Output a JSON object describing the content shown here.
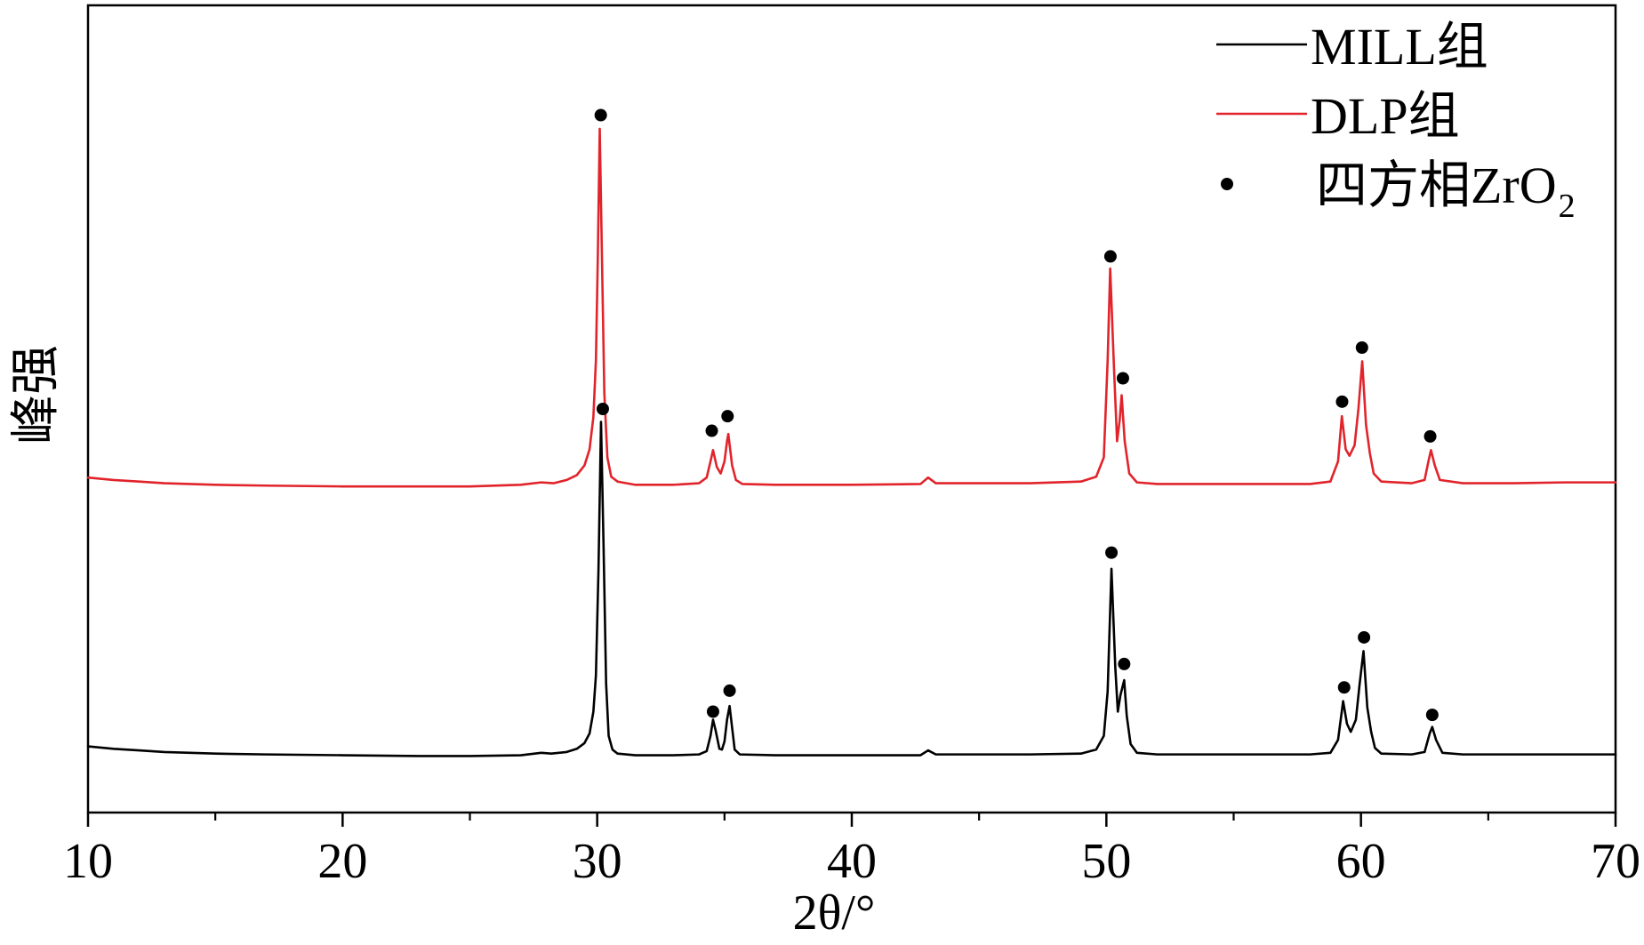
{
  "chart_data": {
    "type": "line",
    "xlabel": "2θ/°",
    "ylabel": "峰强",
    "xlim": [
      10,
      70
    ],
    "ylim": [
      0,
      100
    ],
    "x_ticks": [
      10,
      20,
      30,
      40,
      50,
      60,
      70
    ],
    "x_minor_ticks": [
      15,
      25,
      35,
      45,
      55,
      65
    ],
    "grid": false,
    "legend_position": "top-right",
    "series": [
      {
        "name": "MILL组",
        "color": "#000000",
        "points": [
          [
            10,
            8.2
          ],
          [
            11,
            7.9
          ],
          [
            12,
            7.7
          ],
          [
            13,
            7.5
          ],
          [
            14,
            7.4
          ],
          [
            15,
            7.3
          ],
          [
            17,
            7.2
          ],
          [
            20,
            7.1
          ],
          [
            23,
            7.0
          ],
          [
            25,
            7.0
          ],
          [
            27,
            7.1
          ],
          [
            27.8,
            7.4
          ],
          [
            28.2,
            7.3
          ],
          [
            28.8,
            7.5
          ],
          [
            29.2,
            7.9
          ],
          [
            29.5,
            8.6
          ],
          [
            29.7,
            9.8
          ],
          [
            29.85,
            12.5
          ],
          [
            29.95,
            17.0
          ],
          [
            30.05,
            30.0
          ],
          [
            30.15,
            48.4
          ],
          [
            30.25,
            33.0
          ],
          [
            30.35,
            16.0
          ],
          [
            30.45,
            9.5
          ],
          [
            30.6,
            7.8
          ],
          [
            30.8,
            7.3
          ],
          [
            31.5,
            7.1
          ],
          [
            33,
            7.1
          ],
          [
            34,
            7.2
          ],
          [
            34.3,
            7.6
          ],
          [
            34.45,
            9.5
          ],
          [
            34.55,
            11.5
          ],
          [
            34.65,
            10.2
          ],
          [
            34.8,
            7.9
          ],
          [
            34.9,
            7.8
          ],
          [
            35.0,
            8.8
          ],
          [
            35.1,
            11.5
          ],
          [
            35.2,
            13.2
          ],
          [
            35.3,
            10.5
          ],
          [
            35.4,
            7.8
          ],
          [
            35.6,
            7.2
          ],
          [
            37,
            7.1
          ],
          [
            40,
            7.1
          ],
          [
            42.7,
            7.1
          ],
          [
            43.0,
            7.7
          ],
          [
            43.3,
            7.2
          ],
          [
            45,
            7.2
          ],
          [
            47,
            7.2
          ],
          [
            49,
            7.3
          ],
          [
            49.6,
            7.8
          ],
          [
            49.9,
            9.5
          ],
          [
            50.05,
            15.0
          ],
          [
            50.2,
            30.2
          ],
          [
            50.35,
            18.0
          ],
          [
            50.45,
            12.5
          ],
          [
            50.55,
            14.5
          ],
          [
            50.7,
            16.4
          ],
          [
            50.8,
            12.0
          ],
          [
            50.95,
            8.5
          ],
          [
            51.2,
            7.4
          ],
          [
            52,
            7.2
          ],
          [
            55,
            7.2
          ],
          [
            58,
            7.2
          ],
          [
            58.8,
            7.4
          ],
          [
            59.1,
            9.0
          ],
          [
            59.3,
            13.8
          ],
          [
            59.45,
            11.0
          ],
          [
            59.6,
            10.0
          ],
          [
            59.8,
            11.5
          ],
          [
            59.95,
            16.0
          ],
          [
            60.1,
            20.0
          ],
          [
            60.25,
            13.0
          ],
          [
            60.4,
            10.0
          ],
          [
            60.55,
            8.0
          ],
          [
            60.8,
            7.3
          ],
          [
            62,
            7.2
          ],
          [
            62.5,
            7.5
          ],
          [
            62.7,
            9.8
          ],
          [
            62.8,
            10.6
          ],
          [
            62.95,
            9.0
          ],
          [
            63.2,
            7.4
          ],
          [
            64,
            7.2
          ],
          [
            66,
            7.2
          ],
          [
            68,
            7.2
          ],
          [
            70,
            7.2
          ]
        ]
      },
      {
        "name": "DLP组",
        "color": "#e1242b",
        "points": [
          [
            10,
            41.5
          ],
          [
            11,
            41.2
          ],
          [
            12,
            41.0
          ],
          [
            13,
            40.8
          ],
          [
            15,
            40.6
          ],
          [
            17,
            40.5
          ],
          [
            20,
            40.4
          ],
          [
            23,
            40.4
          ],
          [
            25,
            40.4
          ],
          [
            27,
            40.6
          ],
          [
            27.8,
            40.9
          ],
          [
            28.3,
            40.8
          ],
          [
            28.8,
            41.2
          ],
          [
            29.2,
            41.8
          ],
          [
            29.5,
            43.0
          ],
          [
            29.7,
            45.0
          ],
          [
            29.85,
            49.0
          ],
          [
            29.95,
            56.0
          ],
          [
            30.02,
            68.0
          ],
          [
            30.1,
            84.7
          ],
          [
            30.18,
            70.0
          ],
          [
            30.28,
            52.0
          ],
          [
            30.4,
            44.0
          ],
          [
            30.55,
            41.6
          ],
          [
            30.8,
            41.0
          ],
          [
            31.5,
            40.6
          ],
          [
            33,
            40.6
          ],
          [
            34,
            40.8
          ],
          [
            34.3,
            41.5
          ],
          [
            34.45,
            43.5
          ],
          [
            34.55,
            44.9
          ],
          [
            34.7,
            42.8
          ],
          [
            34.85,
            42.0
          ],
          [
            35.0,
            43.5
          ],
          [
            35.1,
            46.0
          ],
          [
            35.15,
            46.9
          ],
          [
            35.3,
            43.0
          ],
          [
            35.45,
            41.2
          ],
          [
            35.7,
            40.7
          ],
          [
            37,
            40.6
          ],
          [
            40,
            40.6
          ],
          [
            42.7,
            40.7
          ],
          [
            43.0,
            41.5
          ],
          [
            43.3,
            40.8
          ],
          [
            45,
            40.8
          ],
          [
            47,
            40.8
          ],
          [
            49,
            41.0
          ],
          [
            49.6,
            41.6
          ],
          [
            49.9,
            44.0
          ],
          [
            50.05,
            56.0
          ],
          [
            50.15,
            67.4
          ],
          [
            50.3,
            55.0
          ],
          [
            50.42,
            46.0
          ],
          [
            50.52,
            48.5
          ],
          [
            50.6,
            51.7
          ],
          [
            50.72,
            46.0
          ],
          [
            50.9,
            42.0
          ],
          [
            51.2,
            40.9
          ],
          [
            52,
            40.7
          ],
          [
            55,
            40.7
          ],
          [
            58,
            40.7
          ],
          [
            58.8,
            41.0
          ],
          [
            59.1,
            43.5
          ],
          [
            59.25,
            49.1
          ],
          [
            59.4,
            45.0
          ],
          [
            59.55,
            44.2
          ],
          [
            59.75,
            45.5
          ],
          [
            59.9,
            50.0
          ],
          [
            60.05,
            55.9
          ],
          [
            60.2,
            48.0
          ],
          [
            60.35,
            44.5
          ],
          [
            60.5,
            42.0
          ],
          [
            60.8,
            41.0
          ],
          [
            62,
            40.8
          ],
          [
            62.5,
            41.2
          ],
          [
            62.65,
            43.5
          ],
          [
            62.75,
            44.9
          ],
          [
            62.9,
            43.0
          ],
          [
            63.1,
            41.2
          ],
          [
            64,
            40.8
          ],
          [
            66,
            40.8
          ],
          [
            68,
            40.9
          ],
          [
            70,
            40.9
          ]
        ]
      }
    ],
    "markers": {
      "label": "四方相ZrO",
      "label_sub": "2",
      "color": "#000000",
      "points": [
        [
          30.14,
          86.4
        ],
        [
          34.5,
          47.3
        ],
        [
          35.12,
          49.1
        ],
        [
          50.16,
          68.9
        ],
        [
          50.65,
          53.8
        ],
        [
          59.26,
          50.9
        ],
        [
          60.04,
          57.6
        ],
        [
          62.72,
          46.6
        ],
        [
          30.22,
          50.0
        ],
        [
          34.55,
          12.5
        ],
        [
          35.2,
          15.1
        ],
        [
          50.2,
          32.2
        ],
        [
          50.7,
          18.4
        ],
        [
          59.34,
          15.5
        ],
        [
          60.12,
          21.7
        ],
        [
          62.8,
          12.1
        ]
      ]
    }
  }
}
